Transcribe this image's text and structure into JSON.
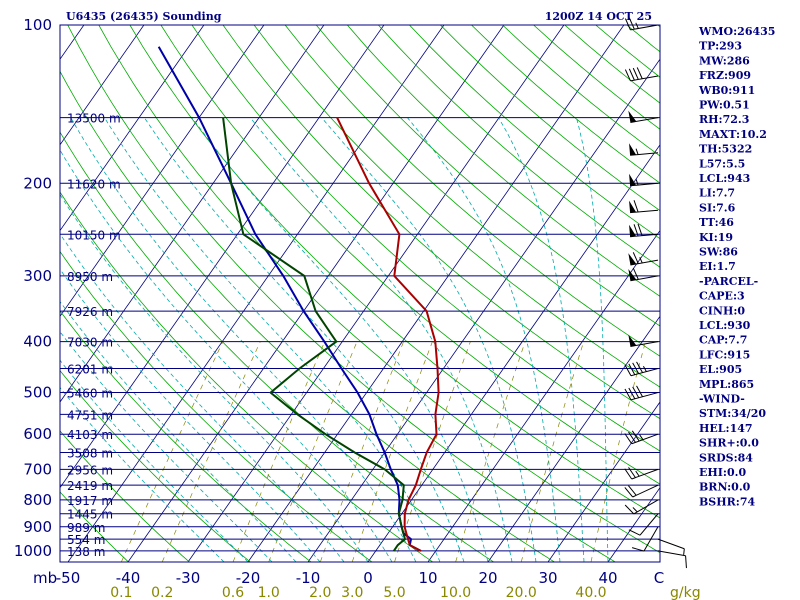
{
  "header": {
    "station": "U6435 (26435) Sounding",
    "time": "1200Z 14 OCT 25"
  },
  "colors": {
    "frame": "#000080",
    "isobar": "#000080",
    "isotherm": "#000080",
    "dry_adiabat": "#00aa00",
    "moist_adiabat": "#00aaaa",
    "mixing_ratio": "#888800",
    "temperature": "#aa0000",
    "dewpoint": "#004400",
    "parcel": "#0000aa",
    "background": "#ffffff"
  },
  "indices": [
    "WMO:26435",
    "TP:293",
    "MW:286",
    "FRZ:909",
    "WB0:911",
    "PW:0.51",
    "RH:72.3",
    "MAXT:10.2",
    "TH:5322",
    "L57:5.5",
    "LCL:943",
    "LI:7.7",
    "SI:7.6",
    "TT:46",
    "KI:19",
    "SW:86",
    "EI:1.7",
    "-PARCEL-",
    "CAPE:3",
    "CINH:0",
    "LCL:930",
    "CAP:7.7",
    "LFC:915",
    "EL:905",
    "MPL:865",
    "-WIND-",
    "STM:34/20",
    "HEL:147",
    "SHR+:0.0",
    "SRDS:84",
    "EHI:0.0",
    "BRN:0.0",
    "BSHR:74"
  ],
  "chart_data": {
    "type": "skew-t",
    "title": "U6435 (26435) Sounding",
    "valid_time": "1200Z 14 OCT 25",
    "pressure_unit": "mb",
    "temperature_unit": "C",
    "mixing_ratio_unit": "g/kg",
    "pressure_range": [
      1000,
      100
    ],
    "temperature_range": [
      -50,
      50
    ],
    "pressure_ticks": [
      "100",
      "200",
      "300",
      "400",
      "500",
      "600",
      "700",
      "800",
      "900",
      "1000"
    ],
    "temperature_ticks": [
      "-50",
      "-40",
      "-30",
      "-20",
      "-10",
      "0",
      "10",
      "20",
      "30",
      "40"
    ],
    "mixing_ratio_ticks": [
      "0.1",
      "0.2",
      "0.6",
      "1.0",
      "2.0",
      "3.0",
      "5.0",
      "10.0",
      "20.0",
      "40.0"
    ],
    "height_labels": [
      {
        "p": 150,
        "label": "13500 m"
      },
      {
        "p": 200,
        "label": "11620 m"
      },
      {
        "p": 250,
        "label": "10150 m"
      },
      {
        "p": 300,
        "label": "8950 m"
      },
      {
        "p": 350,
        "label": "7926 m"
      },
      {
        "p": 400,
        "label": "7030 m"
      },
      {
        "p": 450,
        "label": "6201 m"
      },
      {
        "p": 500,
        "label": "5460 m"
      },
      {
        "p": 550,
        "label": "4751 m"
      },
      {
        "p": 600,
        "label": "4103 m"
      },
      {
        "p": 650,
        "label": "3508 m"
      },
      {
        "p": 700,
        "label": "2956 m"
      },
      {
        "p": 750,
        "label": "2419 m"
      },
      {
        "p": 800,
        "label": "1917 m"
      },
      {
        "p": 850,
        "label": "1445 m"
      },
      {
        "p": 900,
        "label": "989 m"
      },
      {
        "p": 950,
        "label": "554 m"
      },
      {
        "p": 1000,
        "label": "138 m"
      }
    ],
    "temperature_profile": [
      [
        1000,
        7.5
      ],
      [
        975,
        5.0
      ],
      [
        950,
        4.0
      ],
      [
        925,
        3.0
      ],
      [
        900,
        2.0
      ],
      [
        850,
        0.5
      ],
      [
        800,
        -0.5
      ],
      [
        750,
        -1.0
      ],
      [
        700,
        -2.0
      ],
      [
        650,
        -3.0
      ],
      [
        600,
        -3.5
      ],
      [
        550,
        -6.0
      ],
      [
        500,
        -8.0
      ],
      [
        450,
        -11.0
      ],
      [
        400,
        -14.5
      ],
      [
        350,
        -19.5
      ],
      [
        300,
        -29.0
      ],
      [
        250,
        -33.0
      ],
      [
        200,
        -44.0
      ],
      [
        150,
        -57.0
      ]
    ],
    "dewpoint_profile": [
      [
        1000,
        3.0
      ],
      [
        975,
        3.0
      ],
      [
        950,
        3.5
      ],
      [
        925,
        2.5
      ],
      [
        900,
        1.5
      ],
      [
        850,
        -0.5
      ],
      [
        800,
        -1.5
      ],
      [
        750,
        -3.0
      ],
      [
        700,
        -8.0
      ],
      [
        650,
        -15.0
      ],
      [
        600,
        -22.0
      ],
      [
        550,
        -29.0
      ],
      [
        500,
        -36.0
      ],
      [
        450,
        -34.0
      ],
      [
        400,
        -31.0
      ],
      [
        350,
        -38.0
      ],
      [
        300,
        -44.0
      ],
      [
        250,
        -59.0
      ],
      [
        200,
        -67.0
      ],
      [
        150,
        -76.0
      ]
    ],
    "parcel_profile": [
      [
        1000,
        7.5
      ],
      [
        975,
        5.0
      ],
      [
        950,
        4.5
      ],
      [
        925,
        2.5
      ],
      [
        900,
        1.5
      ],
      [
        850,
        -0.5
      ],
      [
        800,
        -2.0
      ],
      [
        750,
        -4.0
      ],
      [
        700,
        -7.0
      ],
      [
        650,
        -10.0
      ],
      [
        600,
        -13.5
      ],
      [
        550,
        -17.0
      ],
      [
        500,
        -21.5
      ],
      [
        450,
        -27.0
      ],
      [
        400,
        -33.0
      ],
      [
        350,
        -40.0
      ],
      [
        300,
        -47.5
      ],
      [
        250,
        -57.0
      ],
      [
        200,
        -67.0
      ],
      [
        150,
        -80.0
      ],
      [
        110,
        -95.0
      ]
    ],
    "wind_barbs": [
      {
        "p": 1000,
        "dir": 100,
        "kt": 10
      },
      {
        "p": 950,
        "dir": 110,
        "kt": 5
      },
      {
        "p": 900,
        "dir": 210,
        "kt": 10
      },
      {
        "p": 850,
        "dir": 220,
        "kt": 10
      },
      {
        "p": 800,
        "dir": 240,
        "kt": 15
      },
      {
        "p": 750,
        "dir": 245,
        "kt": 20
      },
      {
        "p": 700,
        "dir": 250,
        "kt": 25
      },
      {
        "p": 600,
        "dir": 250,
        "kt": 35
      },
      {
        "p": 500,
        "dir": 255,
        "kt": 40
      },
      {
        "p": 450,
        "dir": 255,
        "kt": 45
      },
      {
        "p": 400,
        "dir": 260,
        "kt": 50
      },
      {
        "p": 300,
        "dir": 260,
        "kt": 60
      },
      {
        "p": 280,
        "dir": 260,
        "kt": 65
      },
      {
        "p": 250,
        "dir": 265,
        "kt": 70
      },
      {
        "p": 225,
        "dir": 265,
        "kt": 60
      },
      {
        "p": 200,
        "dir": 265,
        "kt": 55
      },
      {
        "p": 175,
        "dir": 265,
        "kt": 55
      },
      {
        "p": 150,
        "dir": 260,
        "kt": 50
      },
      {
        "p": 125,
        "dir": 260,
        "kt": 40
      },
      {
        "p": 100,
        "dir": 260,
        "kt": 25
      }
    ]
  }
}
